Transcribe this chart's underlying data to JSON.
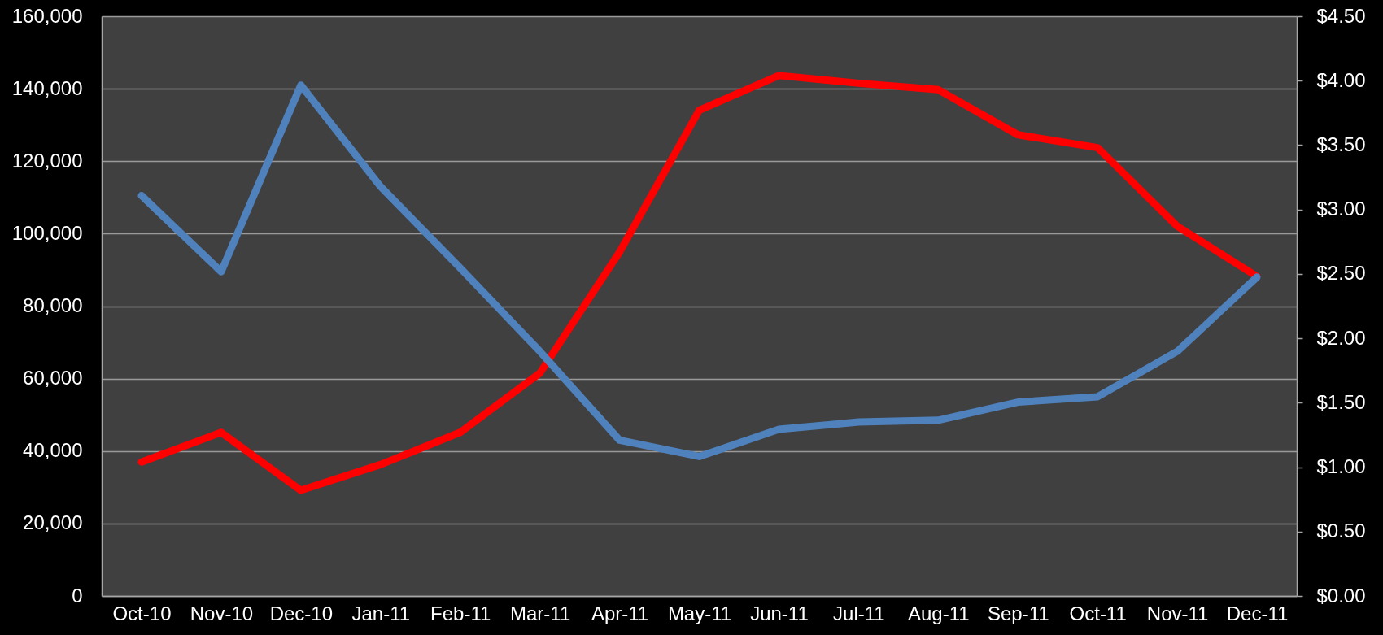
{
  "chart_data": {
    "type": "line",
    "categories": [
      "Oct-10",
      "Nov-10",
      "Dec-10",
      "Jan-11",
      "Feb-11",
      "Mar-11",
      "Apr-11",
      "May-11",
      "Jun-11",
      "Jul-11",
      "Aug-11",
      "Sep-11",
      "Oct-11",
      "Nov-11",
      "Dec-11"
    ],
    "series": [
      {
        "color": "#ff0000",
        "axis": "y2",
        "values": [
          1.04,
          1.27,
          0.82,
          1.02,
          1.27,
          1.73,
          2.67,
          3.77,
          4.04,
          3.98,
          3.93,
          3.58,
          3.48,
          2.87,
          2.48
        ]
      },
      {
        "color": "#4f81bd",
        "axis": "y",
        "values": [
          110500,
          89500,
          141000,
          113000,
          90500,
          67500,
          43000,
          38500,
          46000,
          48000,
          48500,
          53500,
          55000,
          67500,
          88000
        ]
      }
    ],
    "ylim": [
      0,
      160000
    ],
    "yticks": [
      0,
      {
        "value": 20000,
        "label": "20,000"
      },
      {
        "value": 40000,
        "label": "40,000"
      },
      {
        "value": 60000,
        "label": "60,000"
      },
      {
        "value": 80000,
        "label": "80,000"
      },
      {
        "value": 100000,
        "label": "100,000"
      },
      {
        "value": 120000,
        "label": "120,000"
      },
      {
        "value": 140000,
        "label": "140,000"
      },
      {
        "value": 160000,
        "label": "160,000"
      }
    ],
    "y2lim": [
      0,
      4.5
    ],
    "y2ticks": [
      {
        "value": 0,
        "label": "$0.00"
      },
      {
        "value": 0.5,
        "label": "$0.50"
      },
      {
        "value": 1,
        "label": "$1.00"
      },
      {
        "value": 1.5,
        "label": "$1.50"
      },
      {
        "value": 2,
        "label": "$2.00"
      },
      {
        "value": 2.5,
        "label": "$2.50"
      },
      {
        "value": 3,
        "label": "$3.00"
      },
      {
        "value": 3.5,
        "label": "$3.50"
      },
      {
        "value": 4,
        "label": "$4.00"
      },
      {
        "value": 4.5,
        "label": "$4.50"
      }
    ],
    "grid": "y",
    "line_style": "solid"
  }
}
